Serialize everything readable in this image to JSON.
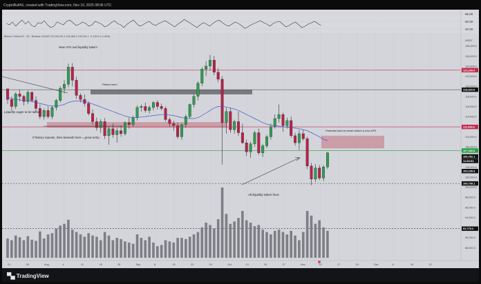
{
  "header": {
    "title": "CryptoBull4X, created with TradingView.com, Nov 10, 2025 08:06 UTC"
  },
  "oscillator": {
    "levels": [
      "65.00",
      "50.00",
      "40.00"
    ]
  },
  "chart": {
    "symbol_line": "Bitcoin / TetherUS · 1D · Binance  105,627.20  106,781.1  105,360.2  106,781.1  +1,153.9 (+1.09%)",
    "currency": "USDT",
    "axis_ticks": [
      "128,000.0",
      "126,000.0",
      "124,000.0",
      "122,000.0",
      "120,000.0",
      "118,000.0",
      "116,000.0",
      "114,000.0",
      "112,000.0",
      "110,000.0",
      "108,000.0",
      "106,000.0",
      "104,000.0",
      "102,000.0",
      "100,000.0",
      "98,000.0",
      "96,000.0",
      "94,000.0",
      "92,000.0",
      "90,000.0",
      "88,000.0"
    ],
    "price_labels": [
      {
        "text": "123,200.0",
        "color": "#c4294b"
      },
      {
        "text": "119,324.0",
        "color": "#141414"
      },
      {
        "text": "111,948.6",
        "color": "#c4294b"
      },
      {
        "text": "107,260.8",
        "color": "#23a045"
      },
      {
        "text": "106,781.1",
        "color": "#141414"
      },
      {
        "text": "11:53:53",
        "color": "#141414"
      },
      {
        "text": "103,190.6",
        "color": "#141414"
      },
      {
        "text": "100,739.1",
        "color": "#141414"
      },
      {
        "text": "91,779.2",
        "color": "#141414"
      }
    ],
    "annotations": [
      "New ATH and liquidity taken!",
      "Retest here!",
      "Liquidity eager to be taken.",
      "If history repeats, then beneath here = great entry.",
      "Potential area to break before a new ATH.",
      "All liquidity taken here."
    ],
    "time_labels": [
      "21",
      "28",
      "Aug",
      "4",
      "11",
      "18",
      "25",
      "Sep",
      "8",
      "15",
      "22",
      "29",
      "Oct",
      "13",
      "20",
      "27",
      "Nov",
      "10",
      "17",
      "24",
      "Dec",
      "8",
      "15",
      "22"
    ]
  },
  "chart_data": {
    "type": "candlestick",
    "symbol": "Bitcoin / TetherUS",
    "currency": "USDT",
    "ylim": [
      86000,
      130000
    ],
    "ohlc": [
      [
        119500,
        119500,
        116500,
        117400
      ],
      [
        117400,
        118000,
        115200,
        116000
      ],
      [
        116000,
        118800,
        115500,
        118500
      ],
      [
        118500,
        119400,
        117000,
        118000
      ],
      [
        118000,
        118300,
        116200,
        117000
      ],
      [
        117000,
        119200,
        116500,
        118800
      ],
      [
        118800,
        119000,
        116800,
        117200
      ],
      [
        117200,
        118000,
        115000,
        115600
      ],
      [
        115600,
        116400,
        113500,
        114000
      ],
      [
        114000,
        115600,
        113400,
        115200
      ],
      [
        115200,
        116000,
        113600,
        114000
      ],
      [
        114000,
        116200,
        113500,
        115800
      ],
      [
        115800,
        117500,
        115200,
        117200
      ],
      [
        117200,
        120000,
        116800,
        119600
      ],
      [
        119600,
        121200,
        118600,
        120400
      ],
      [
        120400,
        124500,
        119800,
        123800
      ],
      [
        123800,
        124600,
        120000,
        121200
      ],
      [
        121200,
        121900,
        117500,
        118200
      ],
      [
        118200,
        118600,
        116800,
        117400
      ],
      [
        117400,
        118400,
        116000,
        116600
      ],
      [
        116600,
        117000,
        114200,
        114600
      ],
      [
        114600,
        115400,
        112400,
        113000
      ],
      [
        113000,
        113800,
        111200,
        111800
      ],
      [
        111800,
        113500,
        110800,
        113000
      ],
      [
        113000,
        113700,
        109600,
        110200
      ],
      [
        110200,
        112000,
        108400,
        111600
      ],
      [
        111600,
        112600,
        109800,
        110400
      ],
      [
        110400,
        111800,
        108800,
        111200
      ],
      [
        111200,
        112200,
        110000,
        110600
      ],
      [
        110600,
        113000,
        110200,
        112800
      ],
      [
        112800,
        113800,
        111600,
        112400
      ],
      [
        112400,
        114200,
        112000,
        113800
      ],
      [
        113800,
        116200,
        113200,
        115800
      ],
      [
        115800,
        116400,
        115000,
        116000
      ],
      [
        116000,
        116800,
        114800,
        115200
      ],
      [
        115200,
        116200,
        114600,
        115800
      ],
      [
        115800,
        117000,
        115200,
        116800
      ],
      [
        116800,
        117200,
        115400,
        116000
      ],
      [
        116000,
        116600,
        115200,
        115600
      ],
      [
        115600,
        116000,
        113000,
        113400
      ],
      [
        113400,
        113800,
        112000,
        112600
      ],
      [
        112600,
        113200,
        111200,
        112200
      ],
      [
        112200,
        112800,
        109600,
        110000
      ],
      [
        110000,
        112600,
        109400,
        112400
      ],
      [
        112400,
        114400,
        111800,
        114000
      ],
      [
        114000,
        116600,
        113600,
        116400
      ],
      [
        116400,
        118400,
        115800,
        118000
      ],
      [
        118000,
        121000,
        117200,
        120600
      ],
      [
        120600,
        123800,
        120000,
        123400
      ],
      [
        123400,
        125000,
        122000,
        124000
      ],
      [
        124000,
        126200,
        123200,
        125200
      ],
      [
        125200,
        126000,
        122200,
        122800
      ],
      [
        122800,
        123600,
        120800,
        121400
      ],
      [
        121400,
        122000,
        104500,
        112800
      ],
      [
        112800,
        115800,
        110600,
        115000
      ],
      [
        115000,
        115800,
        110800,
        111400
      ],
      [
        111400,
        113400,
        110600,
        113000
      ],
      [
        113000,
        115000,
        110200,
        110800
      ],
      [
        110800,
        112600,
        108600,
        108800
      ],
      [
        108800,
        109400,
        106200,
        107000
      ],
      [
        107000,
        109000,
        105800,
        108600
      ],
      [
        108600,
        111200,
        108000,
        110800
      ],
      [
        110800,
        111600,
        106400,
        106800
      ],
      [
        106800,
        108600,
        106000,
        108200
      ],
      [
        108200,
        110400,
        107800,
        110000
      ],
      [
        110000,
        112600,
        109400,
        112000
      ],
      [
        112000,
        114400,
        111600,
        113600
      ],
      [
        113600,
        116400,
        112800,
        114400
      ],
      [
        114400,
        114800,
        111000,
        112200
      ],
      [
        112200,
        113800,
        111600,
        113200
      ],
      [
        113200,
        114000,
        109800,
        110200
      ],
      [
        110200,
        110800,
        108200,
        108800
      ],
      [
        108800,
        111400,
        107400,
        110600
      ],
      [
        110600,
        111400,
        109200,
        109600
      ],
      [
        109600,
        110000,
        103600,
        104200
      ],
      [
        104200,
        104800,
        100400,
        101600
      ],
      [
        101600,
        104600,
        101000,
        103800
      ],
      [
        103800,
        104400,
        101400,
        101800
      ],
      [
        101800,
        104400,
        101200,
        104000
      ],
      [
        104000,
        107000,
        103600,
        106800
      ]
    ],
    "moving_average": [
      117800,
      117600,
      117400,
      117300,
      117200,
      117100,
      117000,
      116800,
      116600,
      116400,
      116200,
      116100,
      116100,
      116200,
      116400,
      116800,
      117000,
      117100,
      117100,
      117000,
      116800,
      116500,
      116200,
      115900,
      115600,
      115300,
      115000,
      114700,
      114400,
      114100,
      113900,
      113800,
      113800,
      113900,
      114000,
      114100,
      114200,
      114300,
      114400,
      114400,
      114300,
      114200,
      114000,
      113800,
      113700,
      113600,
      113600,
      113800,
      114200,
      114700,
      115200,
      115700,
      116000,
      116000,
      115900,
      115700,
      115500,
      115200,
      114800,
      114400,
      114000,
      113600,
      113200,
      112800,
      112500,
      112300,
      112200,
      112100,
      112000,
      111900,
      111800,
      111700,
      111600,
      111400,
      111200,
      110800,
      110400,
      110000,
      109500,
      109200
    ],
    "volume": [
      33,
      30,
      38,
      35,
      30,
      37,
      31,
      29,
      45,
      33,
      40,
      42,
      50,
      55,
      58,
      65,
      48,
      44,
      40,
      36,
      42,
      38,
      36,
      30,
      44,
      38,
      30,
      34,
      32,
      28,
      26,
      24,
      40,
      34,
      30,
      36,
      26,
      20,
      22,
      30,
      28,
      26,
      34,
      34,
      32,
      36,
      40,
      44,
      52,
      60,
      56,
      50,
      66,
      120,
      75,
      58,
      62,
      68,
      80,
      64,
      60,
      54,
      56,
      48,
      44,
      40,
      46,
      48,
      44,
      40,
      46,
      38,
      30,
      44,
      80,
      72,
      58,
      64,
      52,
      46
    ],
    "levels": [
      {
        "label": "123,200.0",
        "value": 123200,
        "color": "#c4294b"
      },
      {
        "label": "119,324.0",
        "value": 119324,
        "color": "#333333"
      },
      {
        "label": "111,948.6",
        "value": 111948.6,
        "color": "#c4294b"
      },
      {
        "label": "107,260.8",
        "value": 107260.8,
        "color": "#23a045"
      },
      {
        "label": "100,739.1",
        "value": 100739.1,
        "color": "#333333"
      },
      {
        "label": "91,779.2",
        "value": 91779.2,
        "color": "#333333"
      }
    ],
    "zones": [
      {
        "name": "retest",
        "low": 118400,
        "high": 119300,
        "color": "#5a5a5e"
      },
      {
        "name": "support",
        "low": 111800,
        "high": 112900,
        "color": "#c78a96"
      },
      {
        "name": "target",
        "low": 107700,
        "high": 110200,
        "color": "#c78a96"
      }
    ],
    "colors": {
      "up": "#2f9d52",
      "down": "#b8224a",
      "wick": "#2a2a2a",
      "ma": "#3f56d6",
      "volume": "#6e6f76",
      "background": "#d4d5db"
    }
  }
}
